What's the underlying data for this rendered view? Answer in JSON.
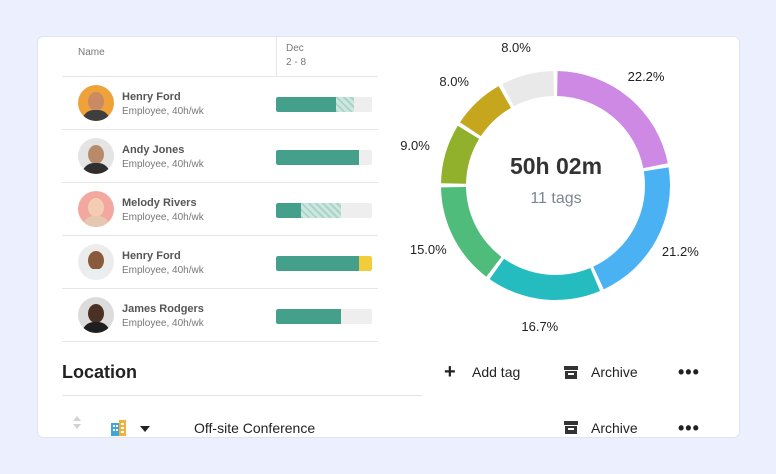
{
  "table": {
    "col_name": "Name",
    "col_date_line1": "Dec",
    "col_date_line2": "2 - 8"
  },
  "people": [
    {
      "name": "Henry Ford",
      "role": "Employee, 40h/wk",
      "solid": 0.63,
      "striped": 0.19,
      "over": 0
    },
    {
      "name": "Andy Jones",
      "role": "Employee, 40h/wk",
      "solid": 0.86,
      "striped": 0,
      "over": 0
    },
    {
      "name": "Melody Rivers",
      "role": "Employee, 40h/wk",
      "solid": 0.26,
      "striped": 0.42,
      "over": 0
    },
    {
      "name": "Henry Ford",
      "role": "Employee, 40h/wk",
      "solid": 0.86,
      "striped": 0,
      "over": 0.14
    },
    {
      "name": "James Rodgers",
      "role": "Employee, 40h/wk",
      "solid": 0.68,
      "striped": 0,
      "over": 0
    }
  ],
  "donut": {
    "total_time": "50h 02m",
    "tag_count": "11 tags",
    "segments": [
      {
        "label": "22.2%",
        "value": 22.2,
        "color": "#cd89e3"
      },
      {
        "label": "21.2%",
        "value": 21.2,
        "color": "#4ab2f3"
      },
      {
        "label": "16.7%",
        "value": 16.7,
        "color": "#25bcbf"
      },
      {
        "label": "15.0%",
        "value": 15.0,
        "color": "#4fbc7b"
      },
      {
        "label": "9.0%",
        "value": 9.0,
        "color": "#91b12c"
      },
      {
        "label": "8.0%",
        "value": 8.0,
        "color": "#c5a61c"
      },
      {
        "label": "8.0%",
        "value": 8.0,
        "color": "#e9e9e9"
      }
    ]
  },
  "location": {
    "title": "Location",
    "add_tag": "Add tag",
    "archive": "Archive",
    "row_name": "Off-site Conference",
    "row_archive": "Archive",
    "more": "•••"
  }
}
